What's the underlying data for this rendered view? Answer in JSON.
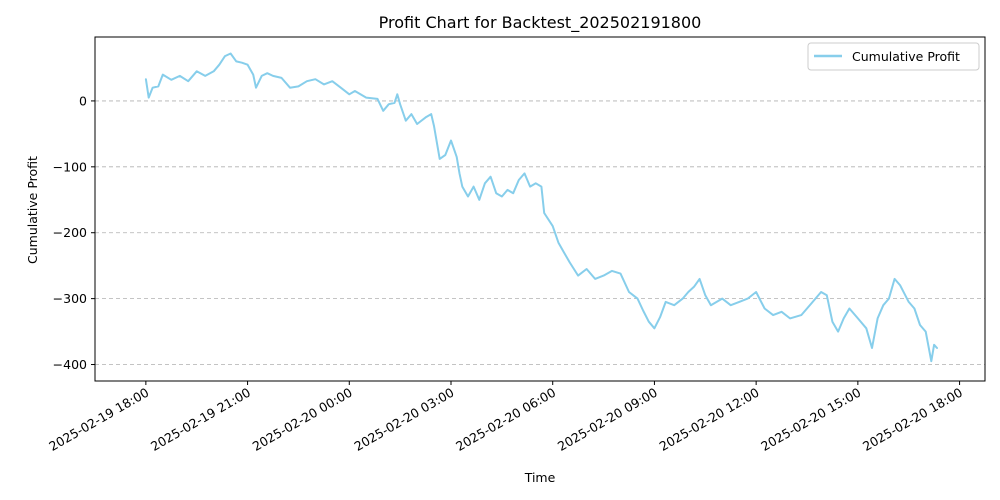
{
  "chart_data": {
    "type": "line",
    "title": "Profit Chart for Backtest_202502191800",
    "xlabel": "Time",
    "ylabel": "Cumulative Profit",
    "xlim": [
      "2025-02-19 16:30",
      "2025-02-20 18:45"
    ],
    "ylim": [
      -425,
      97
    ],
    "grid": {
      "y": true,
      "x": false,
      "style": "dashed"
    },
    "legend": {
      "position": "top-right"
    },
    "x_ticks": [
      {
        "t": "2025-02-19 18:00",
        "label": "2025-02-19 18:00"
      },
      {
        "t": "2025-02-19 21:00",
        "label": "2025-02-19 21:00"
      },
      {
        "t": "2025-02-20 00:00",
        "label": "2025-02-20 00:00"
      },
      {
        "t": "2025-02-20 03:00",
        "label": "2025-02-20 03:00"
      },
      {
        "t": "2025-02-20 06:00",
        "label": "2025-02-20 06:00"
      },
      {
        "t": "2025-02-20 09:00",
        "label": "2025-02-20 09:00"
      },
      {
        "t": "2025-02-20 12:00",
        "label": "2025-02-20 12:00"
      },
      {
        "t": "2025-02-20 15:00",
        "label": "2025-02-20 15:00"
      },
      {
        "t": "2025-02-20 18:00",
        "label": "2025-02-20 18:00"
      }
    ],
    "y_ticks": [
      {
        "v": 0,
        "label": "0"
      },
      {
        "v": -100,
        "label": "−100"
      },
      {
        "v": -200,
        "label": "−200"
      },
      {
        "v": -300,
        "label": "−300"
      },
      {
        "v": -400,
        "label": "−400"
      }
    ],
    "series": [
      {
        "name": "Cumulative Profit",
        "color": "#87ceeb",
        "points": [
          [
            "2025-02-19 18:00",
            33
          ],
          [
            "2025-02-19 18:05",
            5
          ],
          [
            "2025-02-19 18:12",
            20
          ],
          [
            "2025-02-19 18:22",
            22
          ],
          [
            "2025-02-19 18:30",
            40
          ],
          [
            "2025-02-19 18:45",
            32
          ],
          [
            "2025-02-19 19:00",
            38
          ],
          [
            "2025-02-19 19:15",
            30
          ],
          [
            "2025-02-19 19:30",
            45
          ],
          [
            "2025-02-19 19:45",
            38
          ],
          [
            "2025-02-19 20:00",
            45
          ],
          [
            "2025-02-19 20:10",
            55
          ],
          [
            "2025-02-19 20:20",
            68
          ],
          [
            "2025-02-19 20:30",
            72
          ],
          [
            "2025-02-19 20:40",
            60
          ],
          [
            "2025-02-19 20:50",
            58
          ],
          [
            "2025-02-19 21:00",
            55
          ],
          [
            "2025-02-19 21:10",
            40
          ],
          [
            "2025-02-19 21:15",
            20
          ],
          [
            "2025-02-19 21:25",
            38
          ],
          [
            "2025-02-19 21:35",
            42
          ],
          [
            "2025-02-19 21:45",
            38
          ],
          [
            "2025-02-19 22:00",
            35
          ],
          [
            "2025-02-19 22:15",
            20
          ],
          [
            "2025-02-19 22:30",
            22
          ],
          [
            "2025-02-19 22:45",
            30
          ],
          [
            "2025-02-19 23:00",
            33
          ],
          [
            "2025-02-19 23:15",
            25
          ],
          [
            "2025-02-19 23:30",
            30
          ],
          [
            "2025-02-19 23:45",
            20
          ],
          [
            "2025-02-20 00:00",
            10
          ],
          [
            "2025-02-20 00:10",
            15
          ],
          [
            "2025-02-20 00:30",
            5
          ],
          [
            "2025-02-20 00:50",
            3
          ],
          [
            "2025-02-20 01:00",
            -15
          ],
          [
            "2025-02-20 01:10",
            -5
          ],
          [
            "2025-02-20 01:20",
            -3
          ],
          [
            "2025-02-20 01:25",
            10
          ],
          [
            "2025-02-20 01:30",
            -5
          ],
          [
            "2025-02-20 01:40",
            -30
          ],
          [
            "2025-02-20 01:50",
            -20
          ],
          [
            "2025-02-20 02:00",
            -35
          ],
          [
            "2025-02-20 02:15",
            -25
          ],
          [
            "2025-02-20 02:25",
            -20
          ],
          [
            "2025-02-20 02:30",
            -38
          ],
          [
            "2025-02-20 02:40",
            -88
          ],
          [
            "2025-02-20 02:50",
            -82
          ],
          [
            "2025-02-20 03:00",
            -60
          ],
          [
            "2025-02-20 03:10",
            -85
          ],
          [
            "2025-02-20 03:15",
            -110
          ],
          [
            "2025-02-20 03:20",
            -130
          ],
          [
            "2025-02-20 03:30",
            -145
          ],
          [
            "2025-02-20 03:40",
            -130
          ],
          [
            "2025-02-20 03:50",
            -150
          ],
          [
            "2025-02-20 04:00",
            -125
          ],
          [
            "2025-02-20 04:10",
            -115
          ],
          [
            "2025-02-20 04:20",
            -140
          ],
          [
            "2025-02-20 04:30",
            -145
          ],
          [
            "2025-02-20 04:40",
            -135
          ],
          [
            "2025-02-20 04:50",
            -140
          ],
          [
            "2025-02-20 05:00",
            -120
          ],
          [
            "2025-02-20 05:10",
            -110
          ],
          [
            "2025-02-20 05:20",
            -130
          ],
          [
            "2025-02-20 05:30",
            -125
          ],
          [
            "2025-02-20 05:40",
            -130
          ],
          [
            "2025-02-20 05:45",
            -170
          ],
          [
            "2025-02-20 06:00",
            -190
          ],
          [
            "2025-02-20 06:10",
            -215
          ],
          [
            "2025-02-20 06:20",
            -230
          ],
          [
            "2025-02-20 06:30",
            -245
          ],
          [
            "2025-02-20 06:45",
            -265
          ],
          [
            "2025-02-20 07:00",
            -255
          ],
          [
            "2025-02-20 07:15",
            -270
          ],
          [
            "2025-02-20 07:30",
            -265
          ],
          [
            "2025-02-20 07:45",
            -258
          ],
          [
            "2025-02-20 08:00",
            -262
          ],
          [
            "2025-02-20 08:15",
            -290
          ],
          [
            "2025-02-20 08:30",
            -300
          ],
          [
            "2025-02-20 08:40",
            -318
          ],
          [
            "2025-02-20 08:50",
            -335
          ],
          [
            "2025-02-20 09:00",
            -345
          ],
          [
            "2025-02-20 09:10",
            -328
          ],
          [
            "2025-02-20 09:20",
            -305
          ],
          [
            "2025-02-20 09:35",
            -310
          ],
          [
            "2025-02-20 09:50",
            -300
          ],
          [
            "2025-02-20 10:00",
            -290
          ],
          [
            "2025-02-20 10:10",
            -282
          ],
          [
            "2025-02-20 10:20",
            -270
          ],
          [
            "2025-02-20 10:30",
            -295
          ],
          [
            "2025-02-20 10:40",
            -310
          ],
          [
            "2025-02-20 11:00",
            -300
          ],
          [
            "2025-02-20 11:15",
            -310
          ],
          [
            "2025-02-20 11:30",
            -305
          ],
          [
            "2025-02-20 11:45",
            -300
          ],
          [
            "2025-02-20 12:00",
            -290
          ],
          [
            "2025-02-20 12:15",
            -315
          ],
          [
            "2025-02-20 12:30",
            -325
          ],
          [
            "2025-02-20 12:45",
            -320
          ],
          [
            "2025-02-20 13:00",
            -330
          ],
          [
            "2025-02-20 13:20",
            -325
          ],
          [
            "2025-02-20 13:40",
            -305
          ],
          [
            "2025-02-20 13:55",
            -290
          ],
          [
            "2025-02-20 14:05",
            -295
          ],
          [
            "2025-02-20 14:15",
            -335
          ],
          [
            "2025-02-20 14:25",
            -350
          ],
          [
            "2025-02-20 14:35",
            -330
          ],
          [
            "2025-02-20 14:45",
            -315
          ],
          [
            "2025-02-20 15:00",
            -330
          ],
          [
            "2025-02-20 15:15",
            -345
          ],
          [
            "2025-02-20 15:25",
            -375
          ],
          [
            "2025-02-20 15:35",
            -330
          ],
          [
            "2025-02-20 15:45",
            -310
          ],
          [
            "2025-02-20 15:55",
            -300
          ],
          [
            "2025-02-20 16:05",
            -270
          ],
          [
            "2025-02-20 16:15",
            -280
          ],
          [
            "2025-02-20 16:30",
            -305
          ],
          [
            "2025-02-20 16:40",
            -315
          ],
          [
            "2025-02-20 16:50",
            -340
          ],
          [
            "2025-02-20 17:00",
            -350
          ],
          [
            "2025-02-20 17:10",
            -395
          ],
          [
            "2025-02-20 17:15",
            -370
          ],
          [
            "2025-02-20 17:20",
            -375
          ]
        ]
      }
    ]
  }
}
